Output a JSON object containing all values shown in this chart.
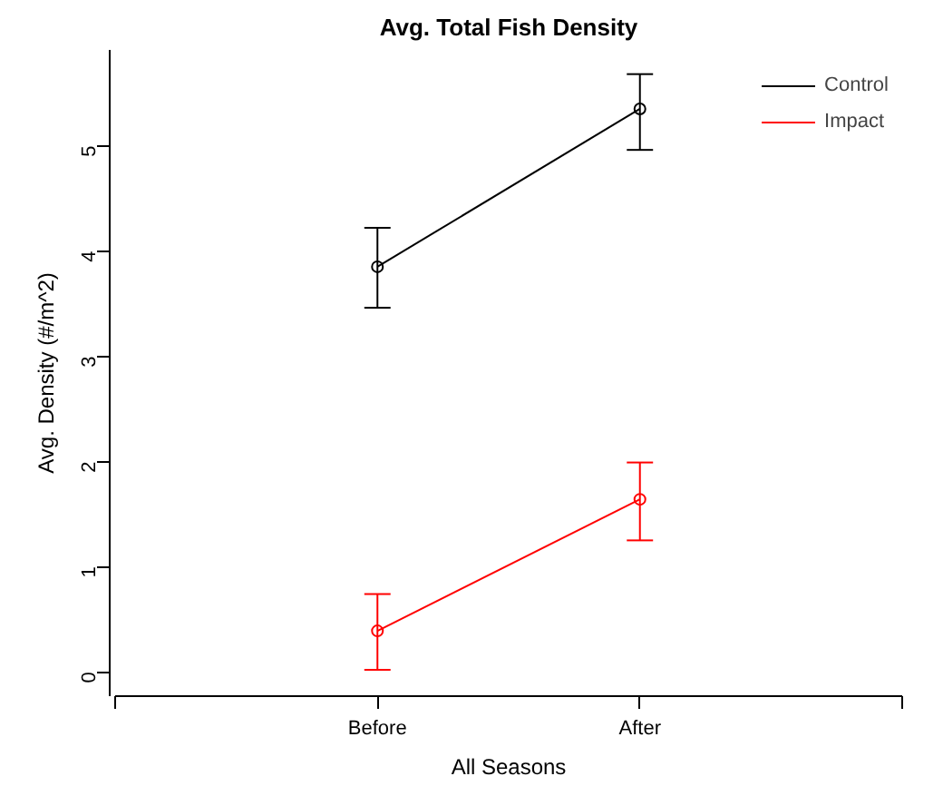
{
  "chart_data": {
    "type": "line",
    "title": "Avg. Total Fish Density",
    "xlabel": "All Seasons",
    "ylabel": "Avg. Density (#/m^2)",
    "categories": [
      "Before",
      "After"
    ],
    "series": [
      {
        "name": "Control",
        "color": "#000000",
        "values": [
          3.85,
          5.35
        ],
        "errors": [
          [
            3.46,
            4.22
          ],
          [
            4.96,
            5.68
          ]
        ]
      },
      {
        "name": "Impact",
        "color": "#ff0000",
        "values": [
          0.39,
          1.64
        ],
        "errors": [
          [
            0.02,
            0.74
          ],
          [
            1.25,
            1.99
          ]
        ]
      }
    ],
    "ylim": [
      -0.23,
      5.91
    ],
    "yticks": [
      0,
      1,
      2,
      3,
      4,
      5
    ],
    "marker": "circle",
    "legend": "top right",
    "grid": false
  }
}
